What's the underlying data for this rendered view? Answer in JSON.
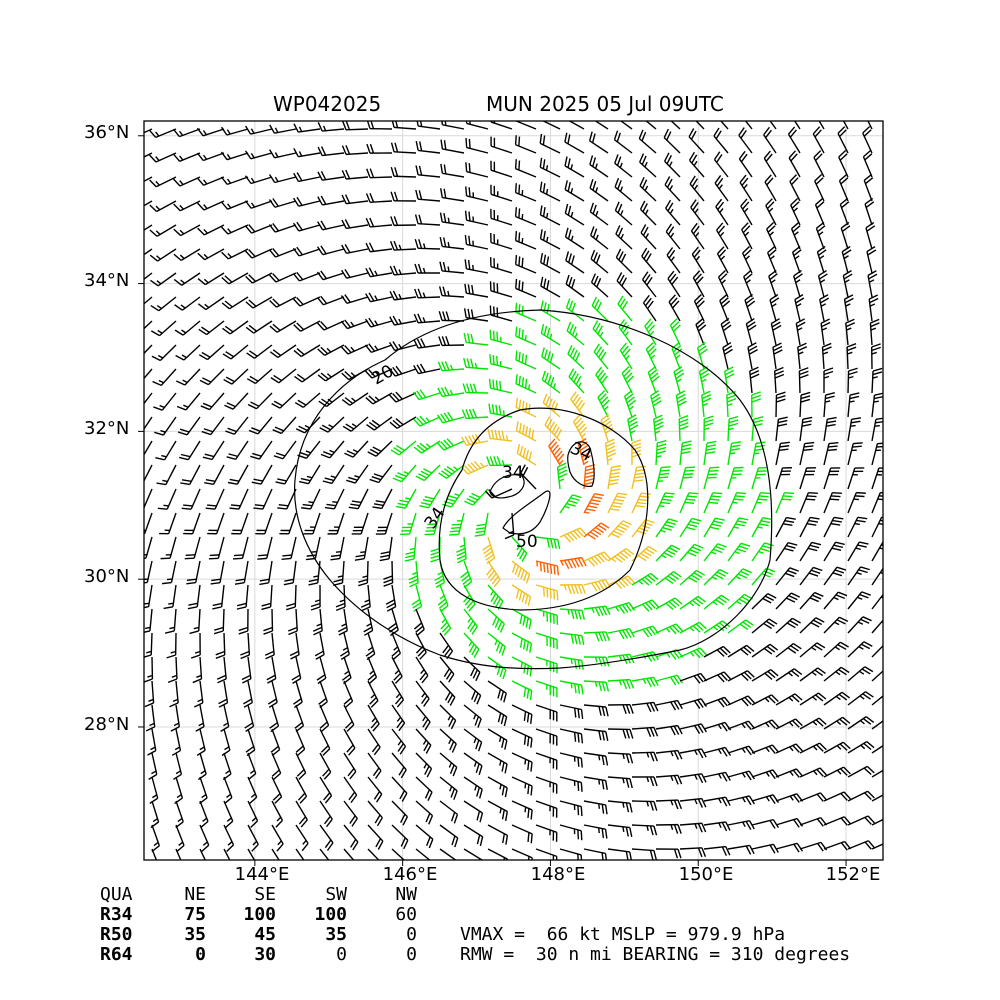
{
  "title": {
    "storm_id": "WP042025",
    "analysis": "MUN 2025 05 Jul 09UTC"
  },
  "map": {
    "lon_range": [
      142.5,
      152.5
    ],
    "lat_range": [
      26.2,
      36.2
    ],
    "lat_ticks": [
      "36°N",
      "34°N",
      "32°N",
      "30°N",
      "28°N"
    ],
    "lon_ticks": [
      "144°E",
      "146°E",
      "148°E",
      "150°E",
      "152°E"
    ],
    "grid": true,
    "center": {
      "lon": 147.7,
      "lat": 31.0
    },
    "wind_colors": {
      "below_34kt": "#000000",
      "34_to_50kt": "#00e600",
      "50_to_64kt": "#f0c020",
      "64kt_plus": "#ff6000"
    },
    "contour_labels": [
      "20",
      "34",
      "34",
      "34",
      "50"
    ]
  },
  "quadrant_table": {
    "headers": [
      "QUA",
      "NE",
      "SE",
      "SW",
      "NW"
    ],
    "rows": [
      {
        "label": "R34",
        "values": [
          "75",
          "100",
          "100",
          "60"
        ]
      },
      {
        "label": "R50",
        "values": [
          "35",
          "45",
          "35",
          "0"
        ]
      },
      {
        "label": "R64",
        "values": [
          "0",
          "30",
          "0",
          "0"
        ]
      }
    ]
  },
  "stats": {
    "line1": "VMAX =  66 kt MSLP = 979.9 hPa",
    "line2": "RMW =  30 n mi BEARING = 310 degrees"
  }
}
